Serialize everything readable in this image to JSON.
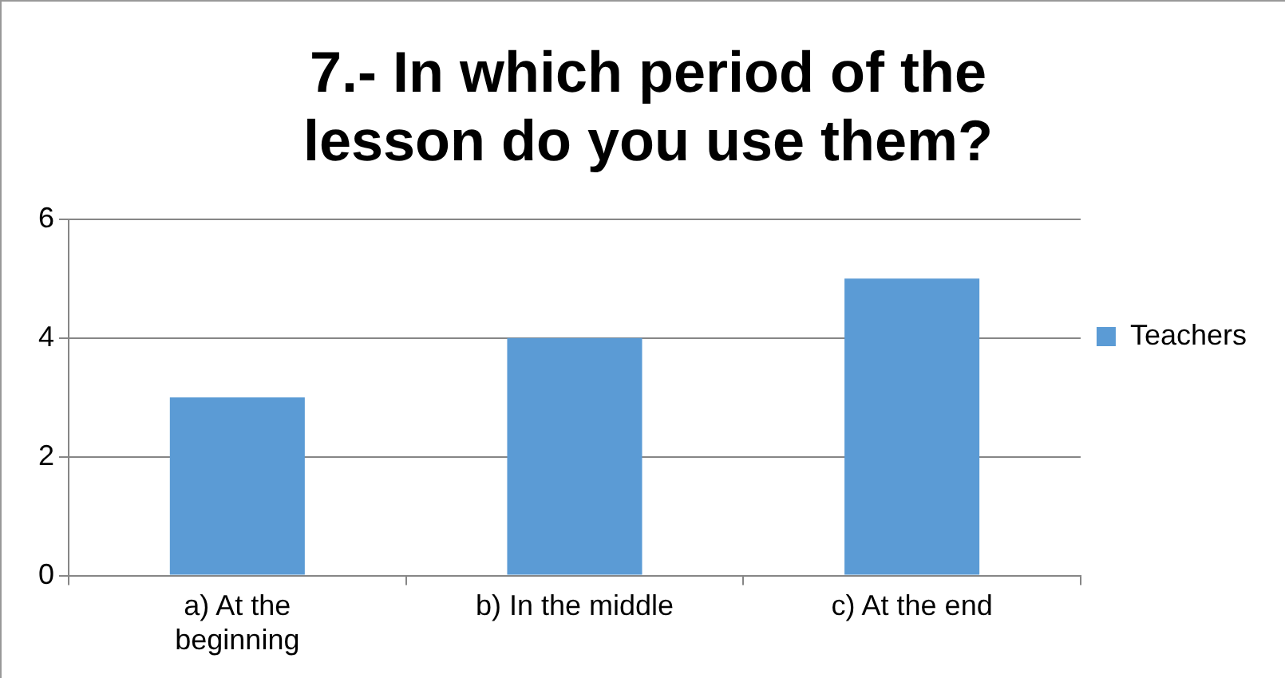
{
  "chart_data": {
    "type": "bar",
    "title": "7.- In which period of the lesson do you use them?",
    "categories": [
      "a) At the beginning",
      "b) In the middle",
      "c) At the end"
    ],
    "series": [
      {
        "name": "Teachers",
        "color": "#5b9bd5",
        "values": [
          3,
          4,
          5
        ]
      }
    ],
    "ylim": [
      0,
      6
    ],
    "yticks": [
      0,
      2,
      4,
      6
    ],
    "grid": "y",
    "legend": "right"
  }
}
